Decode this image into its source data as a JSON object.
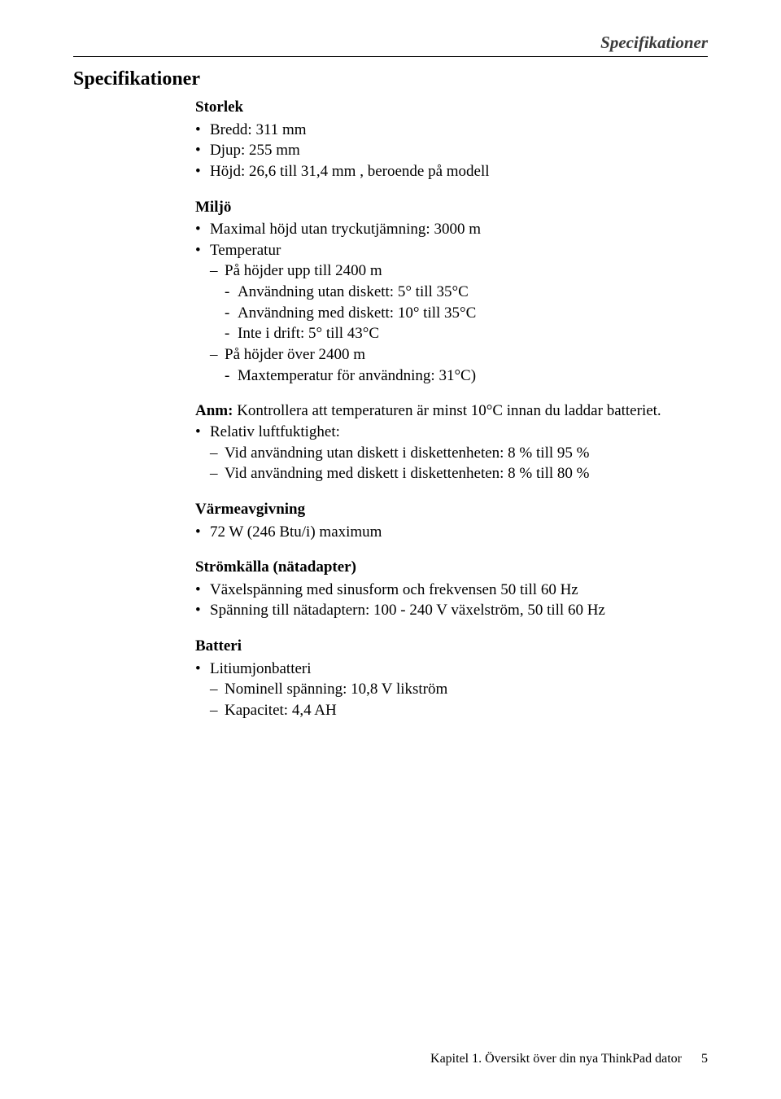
{
  "header": {
    "running_title": "Specifikationer"
  },
  "title": "Specifikationer",
  "storlek": {
    "heading": "Storlek",
    "items": [
      "Bredd: 311 mm",
      "Djup: 255 mm",
      "Höjd: 26,6 till 31,4 mm , beroende på modell"
    ]
  },
  "miljo": {
    "heading": "Miljö",
    "item1": "Maximal höjd utan tryckutjämning: 3000 m",
    "item2": "Temperatur",
    "temp_group1_heading": "På höjder upp till 2400 m",
    "temp_group1": [
      "Användning utan diskett: 5° till 35°C",
      "Användning med diskett: 10° till 35°C",
      "Inte i drift: 5° till 43°C"
    ],
    "temp_group2_heading": "På höjder över 2400 m",
    "temp_group2": [
      "Maxtemperatur för användning: 31°C)"
    ]
  },
  "note": {
    "label": "Anm:",
    "text": "Kontrollera att temperaturen är minst 10°C innan du laddar batteriet."
  },
  "luftfuktighet": {
    "item": "Relativ luftfuktighet:",
    "sub": [
      "Vid användning utan diskett i diskettenheten: 8 % till 95 %",
      "Vid användning med diskett i diskettenheten: 8 % till 80 %"
    ]
  },
  "varme": {
    "heading": "Värmeavgivning",
    "items": [
      "72 W (246 Btu/i) maximum"
    ]
  },
  "strom": {
    "heading": "Strömkälla (nätadapter)",
    "items": [
      "Växelspänning med sinusform och frekvensen 50 till 60 Hz",
      "Spänning till nätadaptern: 100 - 240 V växelström, 50 till 60 Hz"
    ]
  },
  "batteri": {
    "heading": "Batteri",
    "item": "Litiumjonbatteri",
    "sub": [
      "Nominell spänning: 10,8 V likström",
      "Kapacitet: 4,4 AH"
    ]
  },
  "footer": {
    "text": "Kapitel 1. Översikt över din nya ThinkPad dator",
    "page": "5"
  }
}
